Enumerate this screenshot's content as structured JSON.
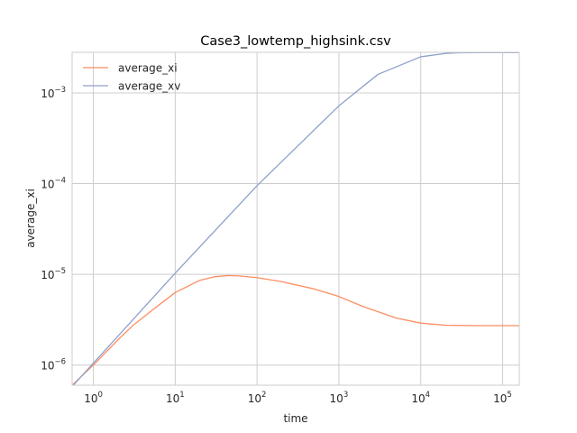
{
  "chart_data": {
    "type": "line",
    "title": "Case3_lowtemp_highsink.csv",
    "xlabel": "time",
    "ylabel": "average_xi",
    "xscale": "log",
    "yscale": "log",
    "xlim": [
      0.55,
      160000
    ],
    "ylim": [
      6e-07,
      0.0028
    ],
    "xticks": [
      {
        "value": 1,
        "base": "10",
        "exp": "0"
      },
      {
        "value": 10,
        "base": "10",
        "exp": "1"
      },
      {
        "value": 100,
        "base": "10",
        "exp": "2"
      },
      {
        "value": 1000,
        "base": "10",
        "exp": "3"
      },
      {
        "value": 10000,
        "base": "10",
        "exp": "4"
      },
      {
        "value": 100000,
        "base": "10",
        "exp": "5"
      }
    ],
    "yticks": [
      {
        "value": 1e-06,
        "base": "10",
        "exp": "−6"
      },
      {
        "value": 1e-05,
        "base": "10",
        "exp": "−5"
      },
      {
        "value": 0.0001,
        "base": "10",
        "exp": "−4"
      },
      {
        "value": 0.001,
        "base": "10",
        "exp": "−3"
      }
    ],
    "grid": true,
    "legend_position": "top-left",
    "series": [
      {
        "name": "average_xi",
        "color": "#fc8d62",
        "x": [
          0.55,
          1,
          2,
          3,
          5,
          10,
          20,
          30,
          45,
          60,
          100,
          200,
          500,
          1000,
          2000,
          5000,
          10000,
          20000,
          50000,
          100000,
          160000
        ],
        "y": [
          6e-07,
          1e-06,
          1.9e-06,
          2.7e-06,
          3.9e-06,
          6.3e-06,
          8.6e-06,
          9.4e-06,
          9.7e-06,
          9.6e-06,
          9.2e-06,
          8.3e-06,
          6.9e-06,
          5.7e-06,
          4.4e-06,
          3.3e-06,
          2.9e-06,
          2.75e-06,
          2.72e-06,
          2.72e-06,
          2.72e-06
        ]
      },
      {
        "name": "average_xv",
        "color": "#8da0cb",
        "x": [
          0.55,
          1,
          10,
          100,
          1000,
          3000,
          10000,
          20000,
          30000,
          50000,
          100000,
          160000
        ],
        "y": [
          5.8e-07,
          1.05e-06,
          1.03e-05,
          9.5e-05,
          0.00072,
          0.0016,
          0.0025,
          0.00272,
          0.00277,
          0.00278,
          0.00278,
          0.00278
        ]
      }
    ]
  }
}
